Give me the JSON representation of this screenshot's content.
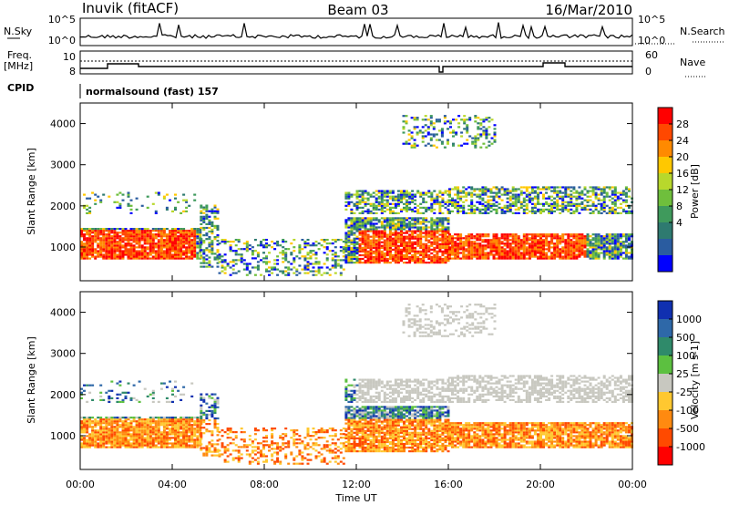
{
  "header": {
    "station": "Inuvik (fitACF)",
    "beam": "Beam 03",
    "date": "16/Mar/2010"
  },
  "noise_panel": {
    "left_label": "N.Sky",
    "right_label": "N.Search",
    "left_ticks": [
      "10^5",
      "10^0"
    ],
    "right_ticks": [
      "10^5",
      "10^0"
    ]
  },
  "freq_panel": {
    "left_label_line1": "Freq.",
    "left_label_line2": "[MHz]",
    "left_ticks": [
      "10",
      "8"
    ],
    "right_label": "Nave",
    "right_ticks": [
      "60",
      "0"
    ]
  },
  "cpid": {
    "label": "CPID",
    "value": "normalsound (fast) 157"
  },
  "chart_data": [
    {
      "type": "heatmap",
      "name": "power",
      "ylabel": "Slant Range [km]",
      "ylim": [
        180,
        4500
      ],
      "y_ticks": [
        1000,
        2000,
        3000,
        4000
      ],
      "colorbar_label": "Power [dB]",
      "colorbar_ticks": [
        "28",
        "24",
        "20",
        "16",
        "12",
        "8",
        "4"
      ],
      "colorbar_colors": [
        "#ff0000",
        "#ff4800",
        "#ff8a00",
        "#ffc800",
        "#b8d82c",
        "#6fbf3c",
        "#3f9a5c",
        "#2e7a70",
        "#2a5ca0",
        "#0000ff"
      ]
    },
    {
      "type": "heatmap",
      "name": "velocity",
      "ylabel": "Slant Range [km]",
      "ylim": [
        180,
        4500
      ],
      "y_ticks": [
        1000,
        2000,
        3000,
        4000
      ],
      "colorbar_label": "Velocity [m s-1]",
      "colorbar_ticks": [
        "1000",
        "500",
        "100",
        "25",
        "-25",
        "-100",
        "-500",
        "-1000"
      ],
      "colorbar_colors": [
        "#1030b0",
        "#2e68a8",
        "#2f8a6a",
        "#5cc040",
        "#c8c8c0",
        "#ffc830",
        "#ff8a10",
        "#ff4a00",
        "#ff0000"
      ]
    }
  ],
  "time_axis": {
    "label": "Time UT",
    "ticks": [
      "00:00",
      "04:00",
      "08:00",
      "12:00",
      "16:00",
      "20:00",
      "00:00"
    ]
  }
}
